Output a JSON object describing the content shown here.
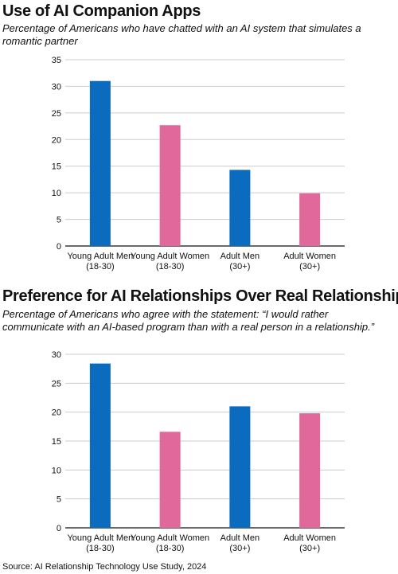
{
  "colors": {
    "men": "#0b6bbf",
    "women": "#e0689a",
    "grid": "#cccccc",
    "axis": "#111111"
  },
  "source": "Source: AI Relationship Technology Use Study, 2024",
  "chart_data": [
    {
      "type": "bar",
      "title": "Use of AI Companion Apps",
      "subtitle": "Percentage of Americans who have chatted with an AI system that simulates a romantic partner",
      "categories": [
        [
          "Young Adult Men",
          "(18-30)"
        ],
        [
          "Young Adult Women",
          "(18-30)"
        ],
        [
          "Adult Men",
          "(30+)"
        ],
        [
          "Adult Women",
          "(30+)"
        ]
      ],
      "values": [
        31,
        22.7,
        14.3,
        9.9
      ],
      "bar_colors": [
        "#0b6bbf",
        "#e0689a",
        "#0b6bbf",
        "#e0689a"
      ],
      "yticks": [
        0,
        5,
        10,
        15,
        20,
        25,
        30,
        35
      ],
      "ylim": [
        0,
        35
      ],
      "grid": true
    },
    {
      "type": "bar",
      "title": "Preference for AI Relationships Over Real Relationships",
      "subtitle": "Percentage of Americans who agree with the statement: “I would rather communicate with an AI-based program than with a real person in a relationship.”",
      "categories": [
        [
          "Young Adult Men",
          "(18-30)"
        ],
        [
          "Young Adult Women",
          "(18-30)"
        ],
        [
          "Adult Men",
          "(30+)"
        ],
        [
          "Adult Women",
          "(30+)"
        ]
      ],
      "values": [
        28.4,
        16.6,
        21,
        19.8
      ],
      "bar_colors": [
        "#0b6bbf",
        "#e0689a",
        "#0b6bbf",
        "#e0689a"
      ],
      "yticks": [
        0,
        5,
        10,
        15,
        20,
        25,
        30
      ],
      "ylim": [
        0,
        30
      ],
      "grid": true
    }
  ]
}
